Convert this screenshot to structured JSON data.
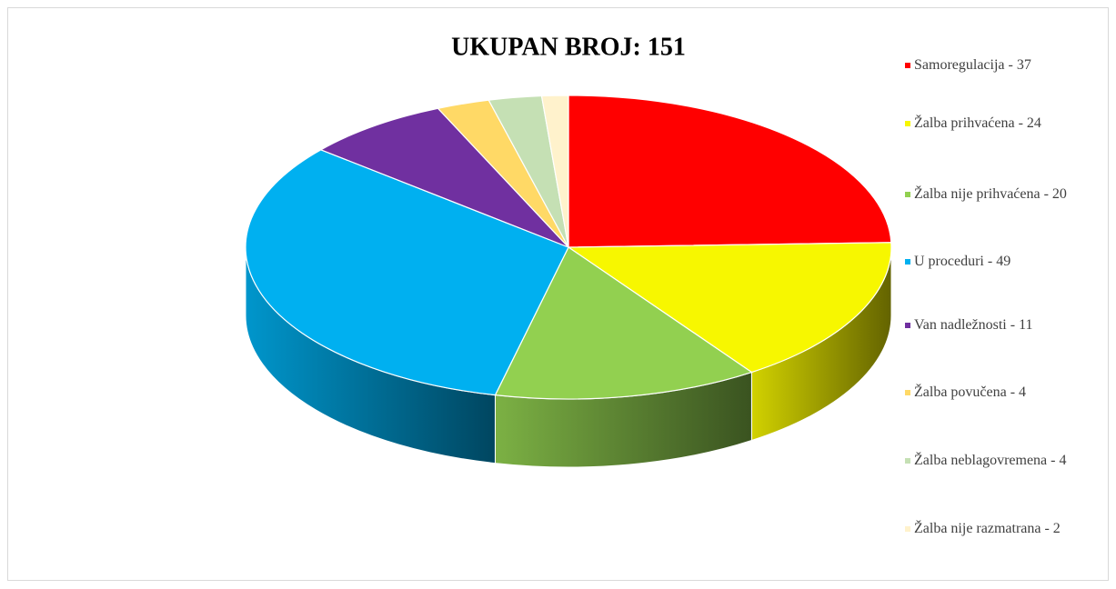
{
  "chart_data": {
    "type": "pie3d",
    "title": "UKUPAN BROJ: 151",
    "categories": [
      "Samoregulacija - 37",
      "Žalba prihvaćena - 24",
      "Žalba nije prihvaćena - 20",
      "U proceduri - 49",
      "Van nadležnosti - 11",
      "Žalba povučena - 4",
      "Žalba neblagovremena - 4",
      "Žalba nije razmatrana - 2"
    ],
    "values": [
      37,
      24,
      20,
      49,
      11,
      4,
      4,
      2
    ],
    "colors": [
      "#ff0000",
      "#f7f700",
      "#92d050",
      "#00b0f0",
      "#7030a0",
      "#ffd966",
      "#c5e0b4",
      "#fff2cc"
    ],
    "legend": "right"
  }
}
